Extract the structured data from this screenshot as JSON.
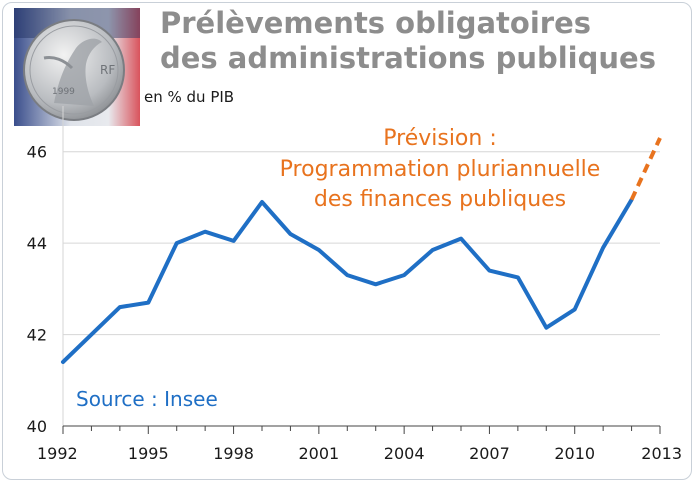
{
  "title_line1": "Prélèvements obligatoires",
  "title_line2": "des administrations publiques",
  "unit": "en % du PIB",
  "forecast_label": [
    "Prévision :",
    "Programmation pluriannuelle",
    "des finances publiques"
  ],
  "source": "Source : Insee",
  "colors": {
    "actual": "#1f6fc5",
    "forecast": "#e8731e",
    "title": "#8d8d8d"
  },
  "chart_data": {
    "type": "line",
    "title": "Prélèvements obligatoires des administrations publiques",
    "ylabel": "en % du PIB",
    "xlim": [
      1992,
      2013
    ],
    "ylim": [
      40,
      47
    ],
    "x_ticks": [
      1992,
      1995,
      1998,
      2001,
      2004,
      2007,
      2010,
      2013
    ],
    "y_ticks": [
      40,
      42,
      44,
      46
    ],
    "grid": "horizontal",
    "series": [
      {
        "name": "",
        "style": "solid",
        "x": [
          1992,
          1993,
          1994,
          1995,
          1996,
          1997,
          1998,
          1999,
          2000,
          2001,
          2002,
          2003,
          2004,
          2005,
          2006,
          2007,
          2008,
          2009,
          2010,
          2011,
          2012
        ],
        "values": [
          41.4,
          42.0,
          42.6,
          42.7,
          44.0,
          44.25,
          44.05,
          44.9,
          44.2,
          43.85,
          43.3,
          43.1,
          43.3,
          43.85,
          44.1,
          43.4,
          43.25,
          42.15,
          42.55,
          43.9,
          44.95
        ]
      },
      {
        "name": "Prévision",
        "style": "dashed",
        "x": [
          2012,
          2013
        ],
        "values": [
          44.95,
          46.3
        ]
      }
    ]
  }
}
